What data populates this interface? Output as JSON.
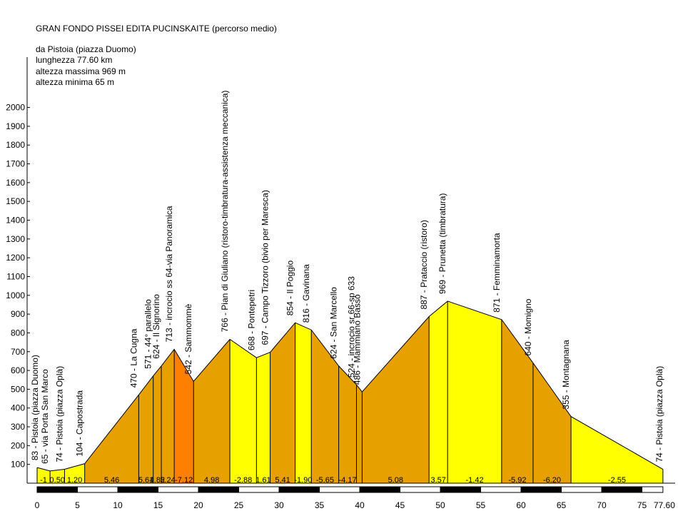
{
  "header": {
    "title": "GRAN FONDO PISSEI EDITA PUCINSKAITE (percorso medio)",
    "info": [
      "da Pistoia (piazza Duomo)",
      "lunghezza 77.60 km",
      "altezza massima 969 m",
      "altezza minima 65 m"
    ]
  },
  "chart_data": {
    "type": "area",
    "title": "GRAN FONDO PISSEI EDITA PUCINSKAITE (percorso medio)",
    "xlabel": "",
    "ylabel": "",
    "xlim": [
      0,
      77.6
    ],
    "ylim": [
      0,
      2000
    ],
    "x_ticks": [
      "0",
      "5",
      "10",
      "15",
      "20",
      "25",
      "30",
      "35",
      "40",
      "45",
      "50",
      "55",
      "60",
      "65",
      "70",
      "75",
      "77.60"
    ],
    "y_ticks": [
      "100",
      "200",
      "300",
      "400",
      "500",
      "600",
      "700",
      "800",
      "900",
      "1000",
      "1100",
      "1200",
      "1300",
      "1400",
      "1500",
      "1600",
      "1700",
      "1800",
      "1900",
      "2000"
    ],
    "grid": false,
    "colors": {
      "flat": "#ffff00",
      "moderate": "#e6a000",
      "steep": "#ff8000",
      "bar_dark": "#000000",
      "bar_light": "#ffffff"
    },
    "profile": [
      {
        "km": 0.0,
        "alt": 83,
        "label": "83 - Pistoia (piazza Duomo)"
      },
      {
        "km": 1.6,
        "alt": 65,
        "label": "65 - via Porta San Marco"
      },
      {
        "km": 3.4,
        "alt": 74,
        "label": "74 - Pistoia (piazza Oplà)"
      },
      {
        "km": 5.9,
        "alt": 104,
        "label": "104 - Capostrada"
      },
      {
        "km": 12.6,
        "alt": 470,
        "label": "470 - La Cugna"
      },
      {
        "km": 14.4,
        "alt": 571,
        "label": "571 - 44° parallelo"
      },
      {
        "km": 15.4,
        "alt": 624,
        "label": "624 - Il Signorino"
      },
      {
        "km": 17.0,
        "alt": 713,
        "label": "713 - incrocio ss 64-via Panoramica"
      },
      {
        "km": 19.4,
        "alt": 542,
        "label": "542 - Sammommè"
      },
      {
        "km": 23.9,
        "alt": 766,
        "label": "766 - Pian di Giuliano (ristoro-timbratura-assistenza meccanica)"
      },
      {
        "km": 27.2,
        "alt": 668,
        "label": "668 - Pontepetri"
      },
      {
        "km": 28.9,
        "alt": 697,
        "label": "697 - Campo Tizzoro (bivio per Maresca)"
      },
      {
        "km": 32.0,
        "alt": 854,
        "label": "854 - Il Poggio"
      },
      {
        "km": 34.0,
        "alt": 816,
        "label": "816 - Gavinana"
      },
      {
        "km": 37.4,
        "alt": 624,
        "label": "624 - San Marcello"
      },
      {
        "km": 39.6,
        "alt": 524,
        "label": "524 - incrocio sr 66-sp 633"
      },
      {
        "km": 40.3,
        "alt": 486,
        "label": "486 - Mammiano Basso"
      },
      {
        "km": 48.6,
        "alt": 887,
        "label": "887 - Prataccio (ristoro)"
      },
      {
        "km": 50.9,
        "alt": 969,
        "label": "969 - Prunetta (timbratura)"
      },
      {
        "km": 57.6,
        "alt": 871,
        "label": "871 - Femminamorta"
      },
      {
        "km": 61.5,
        "alt": 640,
        "label": "640 - Momigno"
      },
      {
        "km": 66.2,
        "alt": 355,
        "label": "355 - Montagnana"
      },
      {
        "km": 77.6,
        "alt": 74,
        "label": "74 - Pistoia (piazza Oplà)"
      }
    ],
    "gradients": [
      {
        "label": "-1",
        "class": "flat"
      },
      {
        "label": "0.50",
        "class": "flat"
      },
      {
        "label": "1.20",
        "class": "flat"
      },
      {
        "label": "5.46",
        "class": "moderate"
      },
      {
        "label": "5.61",
        "class": "moderate"
      },
      {
        "label": "4.82",
        "class": "moderate"
      },
      {
        "label": "5.24",
        "class": "moderate"
      },
      {
        "label": "-7.12",
        "class": "steep"
      },
      {
        "label": "4.98",
        "class": "moderate"
      },
      {
        "label": "-2.88",
        "class": "flat"
      },
      {
        "label": "1.61",
        "class": "flat"
      },
      {
        "label": "5.41",
        "class": "moderate"
      },
      {
        "label": "-1.90",
        "class": "flat"
      },
      {
        "label": "-5.65",
        "class": "moderate"
      },
      {
        "label": "-4.17",
        "class": "moderate"
      },
      {
        "label": "",
        "class": "moderate"
      },
      {
        "label": "5.08",
        "class": "moderate"
      },
      {
        "label": "3.57",
        "class": "flat"
      },
      {
        "label": "-1.42",
        "class": "flat"
      },
      {
        "label": "-5.92",
        "class": "moderate"
      },
      {
        "label": "-6.20",
        "class": "moderate"
      },
      {
        "label": "-2.55",
        "class": "flat"
      }
    ]
  }
}
